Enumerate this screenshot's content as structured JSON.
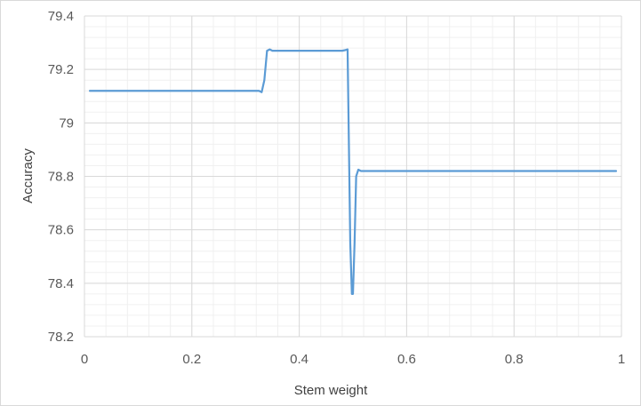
{
  "chart_data": {
    "type": "line",
    "title": "",
    "xlabel": "Stem weight",
    "ylabel": "Accuracy",
    "xlim": [
      0,
      1
    ],
    "ylim": [
      78.2,
      79.4
    ],
    "x_ticks": [
      "0",
      "0.2",
      "0.4",
      "0.6",
      "0.8",
      "1"
    ],
    "y_ticks": [
      "78.2",
      "78.4",
      "78.6",
      "78.8",
      "79",
      "79.2",
      "79.4"
    ],
    "x_tick_values": [
      0,
      0.2,
      0.4,
      0.6,
      0.8,
      1
    ],
    "y_tick_values": [
      78.2,
      78.4,
      78.6,
      78.8,
      79.0,
      79.2,
      79.4
    ],
    "grid": "major and minor",
    "legend": "none",
    "series_color": "#5b9bd5",
    "series": [
      {
        "x": [
          0.01,
          0.32,
          0.325,
          0.33,
          0.335,
          0.34,
          0.345,
          0.35,
          0.36,
          0.48,
          0.485,
          0.49,
          0.495,
          0.498,
          0.5,
          0.503,
          0.506,
          0.51,
          0.515,
          0.52,
          0.99
        ],
        "y": [
          79.12,
          79.12,
          79.12,
          79.115,
          79.16,
          79.27,
          79.275,
          79.27,
          79.27,
          79.27,
          79.272,
          79.275,
          78.55,
          78.36,
          78.36,
          78.55,
          78.8,
          78.825,
          78.82,
          78.82,
          78.82
        ]
      }
    ]
  }
}
